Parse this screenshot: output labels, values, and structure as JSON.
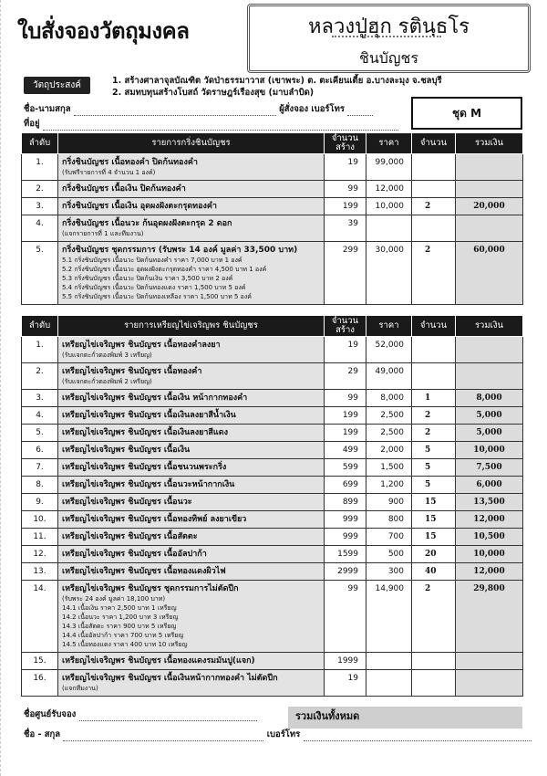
{
  "header": {
    "title": "ใบสั่งจองวัตถุมงคล",
    "banner_line1": "หลวงปู่ฮุก รตินฺธโร",
    "banner_line2": "ชินบัญชร"
  },
  "purpose": {
    "label": "วัตถุประสงค์",
    "items": [
      "1. สร้างศาลาจุลบัณฑิต วัดป่าธรรมาวาส (เขาพระ) ต. ตะเคียนเตี้ย อ.บางละมุง จ.ชลบุรี",
      "2. สมทบทุนสร้างโบสถ์ วัดราษฎร์เรืองสุข (มาบลำบิด)"
    ]
  },
  "form": {
    "name_label": "ชื่อ-นามสกุล",
    "orderer_label": "ผู้สั่งจอง",
    "phone_label": "เบอร์โทร",
    "address_label": "ที่อยู่",
    "set_label": "ชุด M"
  },
  "columns": {
    "no": "ลำดับ",
    "stock": "จำนวนสร้าง",
    "price": "ราคา",
    "qty": "จำนวน",
    "total": "รวมเงิน"
  },
  "section1": {
    "heading": "รายการกริ่งชินบัญชร",
    "rows": [
      {
        "no": "1.",
        "desc": "กริ่งชินบัญชร เนื้อทองคำ ปิดก้นทองคำ",
        "subs": [
          "(รับฟรีรายการที่ 4 จำนวน 1 องค์)"
        ],
        "stock": "19",
        "price": "99,000",
        "qty": "",
        "total": ""
      },
      {
        "no": "2.",
        "desc": "กริ่งชินบัญชร เนื้อเงิน ปิดก้นทองคำ",
        "subs": [],
        "stock": "99",
        "price": "12,000",
        "qty": "",
        "total": ""
      },
      {
        "no": "3.",
        "desc": "กริ่งชินบัญชร เนื้อเงิน อุดผงฝังตะกรุดทองคำ",
        "subs": [],
        "stock": "199",
        "price": "10,000",
        "qty": "2",
        "total": "20,000"
      },
      {
        "no": "4.",
        "desc": "กริ่งชินบัญชร เนื้อนวะ ก้นอุดผงฝังตะกรุด 2 ดอก",
        "subs": [
          "(แจกรายการที่ 1 และทีมงาน)"
        ],
        "stock": "39",
        "price": "",
        "qty": "",
        "total": ""
      },
      {
        "no": "5.",
        "desc": "กริ่งชินบัญชร ชุดกรรมการ (รับพระ 14 องค์ มูลค่า 33,500 บาท)",
        "subs": [
          "5.1 กริ่งชินบัญชร เนื้อนวะ ปิดก้นทองคำ ราคา 7,000 บาท 1 องค์",
          "5.2 กริ่งชินบัญชร เนื้อนวะ อุดผงฝังตะกรุดทองคำ ราคา 4,500 บาท 1 องค์",
          "5.3 กริ่งชินบัญชร เนื้อนวะ ปิดก้นเงิน ราคา 3,500 บาท 2 องค์",
          "5.4 กริ่งชินบัญชร เนื้อนวะ ปิดก้นทองแดง ราคา 1,500 บาท 5 องค์",
          "5.5 กริ่งชินบัญชร เนื้อนวะ ปิดก้นทองเหลือง ราคา 1,500 บาท 5 องค์"
        ],
        "stock": "299",
        "price": "30,000",
        "qty": "2",
        "total": "60,000"
      }
    ]
  },
  "section2": {
    "heading": "รายการเหรียญไข่เจริญพร ชินบัญชร",
    "rows": [
      {
        "no": "1.",
        "desc": "เหรียญไข่เจริญพร ชินบัญชร เนื้อทองคำลงยา",
        "subs": [
          "(รับแจกตะกั่วตองพิมพ์ 3 เหรียญ)"
        ],
        "stock": "19",
        "price": "52,000",
        "qty": "",
        "total": ""
      },
      {
        "no": "2.",
        "desc": "เหรียญไข่เจริญพร ชินบัญชร เนื้อทองคำ",
        "subs": [
          "(รับแจกตะกั่วตองพิมพ์ 2 เหรียญ)"
        ],
        "stock": "29",
        "price": "49,000",
        "qty": "",
        "total": ""
      },
      {
        "no": "3.",
        "desc": "เหรียญไข่เจริญพร ชินบัญชร เนื้อเงิน หน้ากากทองคำ",
        "subs": [],
        "stock": "99",
        "price": "8,000",
        "qty": "1",
        "total": "8,000"
      },
      {
        "no": "4.",
        "desc": "เหรียญไข่เจริญพร ชินบัญชร เนื้อเงินลงยาสีน้ำเงิน",
        "subs": [],
        "stock": "199",
        "price": "2,500",
        "qty": "2",
        "total": "5,000"
      },
      {
        "no": "5.",
        "desc": "เหรียญไข่เจริญพร ชินบัญชร เนื้อเงินลงยาสีแดง",
        "subs": [],
        "stock": "199",
        "price": "2,500",
        "qty": "2",
        "total": "5,000"
      },
      {
        "no": "6.",
        "desc": "เหรียญไข่เจริญพร ชินบัญชร เนื้อเงิน",
        "subs": [],
        "stock": "499",
        "price": "2,000",
        "qty": "5",
        "total": "10,000"
      },
      {
        "no": "7.",
        "desc": "เหรียญไข่เจริญพร ชินบัญชร เนื้อชนวนพระกริ่ง",
        "subs": [],
        "stock": "599",
        "price": "1,500",
        "qty": "5",
        "total": "7,500"
      },
      {
        "no": "8.",
        "desc": "เหรียญไข่เจริญพร ชินบัญชร เนื้อนวะหน้ากากเงิน",
        "subs": [],
        "stock": "699",
        "price": "1,200",
        "qty": "5",
        "total": "6,000"
      },
      {
        "no": "9.",
        "desc": "เหรียญไข่เจริญพร ชินบัญชร เนื้อนวะ",
        "subs": [],
        "stock": "899",
        "price": "900",
        "qty": "15",
        "total": "13,500"
      },
      {
        "no": "10.",
        "desc": "เหรียญไข่เจริญพร ชินบัญชร เนื้อทองทิพย์ ลงยาเขียว",
        "subs": [],
        "stock": "999",
        "price": "800",
        "qty": "15",
        "total": "12,000"
      },
      {
        "no": "11.",
        "desc": "เหรียญไข่เจริญพร ชินบัญชร เนื้อสัตตะ",
        "subs": [],
        "stock": "999",
        "price": "700",
        "qty": "15",
        "total": "10,500"
      },
      {
        "no": "12.",
        "desc": "เหรียญไข่เจริญพร ชินบัญชร เนื้ออัลปาก้า",
        "subs": [],
        "stock": "1599",
        "price": "500",
        "qty": "20",
        "total": "10,000"
      },
      {
        "no": "13.",
        "desc": "เหรียญไข่เจริญพร ชินบัญชร เนื้อทองแดงผิวไฟ",
        "subs": [],
        "stock": "2999",
        "price": "300",
        "qty": "40",
        "total": "12,000"
      },
      {
        "no": "14.",
        "desc": "เหรียญไข่เจริญพร ชินบัญชร ชุดกรรมการไม่ตัดปีก",
        "subs": [
          "(รับพระ 24 องค์ มูลค่า 18,100 บาท)",
          "14.1 เนื้อเงิน ราคา 2,500 บาท 1 เหรียญ",
          "14.2 เนื้อนวะ ราคา 1,200 บาท 3 เหรียญ",
          "14.3 เนื้อสัตตะ ราคา 900 บาท 5 เหรียญ",
          "14.4 เนื้ออัลปาก้า ราคา 700 บาท 5 เหรียญ",
          "14.5 เนื้อทองแดง ราคา 400 บาท 10 เหรียญ"
        ],
        "stock": "99",
        "price": "14,900",
        "qty": "2",
        "total": "29,800"
      },
      {
        "no": "15.",
        "desc": "เหรียญไข่เจริญพร ชินบัญชร เนื้อทองแดงรมมันปู(แจก)",
        "subs": [],
        "stock": "1999",
        "price": "",
        "qty": "",
        "total": ""
      },
      {
        "no": "16.",
        "desc": "เหรียญไข่เจริญพร ชินบัญชร เนื้อเงินหน้ากากทองคำ ไม่ตัดปีก",
        "subs": [
          "(แจกทีมงาน)"
        ],
        "stock": "19",
        "price": "",
        "qty": "",
        "total": ""
      }
    ]
  },
  "footer": {
    "grand_total_label": "รวมเงินทั้งหมด",
    "center_label": "ชื่อศูนย์รับจอง",
    "name_label": "ชื่อ - สกุล",
    "phone_label": "เบอร์โทร"
  }
}
